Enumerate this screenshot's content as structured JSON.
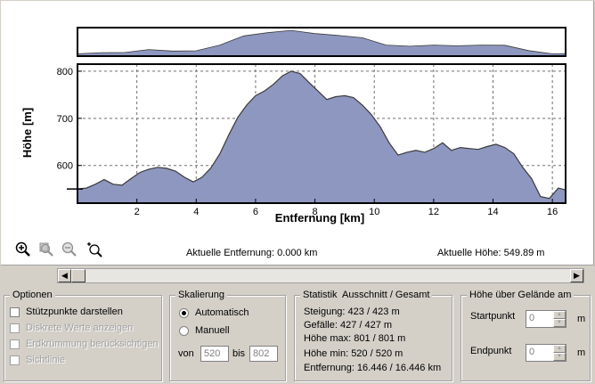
{
  "chart_data": {
    "type": "area",
    "ylabel": "Höhe [m]",
    "xlabel": "Entfernung [km]",
    "x_ticks": [
      "2",
      "4",
      "6",
      "8",
      "10",
      "12",
      "14",
      "16"
    ],
    "y_ticks": [
      "600",
      "700",
      "800"
    ],
    "xlim": [
      0,
      16.446
    ],
    "ylim": [
      520,
      815
    ],
    "grid": true,
    "profile_x": [
      0,
      0.3,
      0.6,
      0.9,
      1.2,
      1.5,
      1.8,
      2.1,
      2.4,
      2.7,
      3.0,
      3.3,
      3.6,
      3.9,
      4.2,
      4.5,
      4.8,
      5.1,
      5.4,
      5.7,
      6.0,
      6.3,
      6.6,
      6.9,
      7.2,
      7.5,
      7.8,
      8.1,
      8.4,
      8.7,
      9.0,
      9.3,
      9.6,
      9.9,
      10.2,
      10.5,
      10.8,
      11.1,
      11.4,
      11.7,
      12.0,
      12.3,
      12.6,
      12.9,
      13.2,
      13.5,
      13.8,
      14.1,
      14.4,
      14.7,
      15.0,
      15.3,
      15.6,
      15.9,
      16.2,
      16.446
    ],
    "profile_y": [
      550,
      552,
      560,
      570,
      560,
      558,
      572,
      585,
      592,
      596,
      594,
      588,
      575,
      565,
      575,
      595,
      625,
      665,
      702,
      728,
      748,
      758,
      772,
      790,
      800,
      795,
      776,
      758,
      740,
      746,
      748,
      744,
      728,
      708,
      682,
      648,
      622,
      628,
      632,
      628,
      636,
      648,
      632,
      638,
      636,
      634,
      640,
      645,
      638,
      625,
      596,
      572,
      534,
      530,
      552,
      548
    ],
    "overview_x": [
      0,
      0.8,
      1.6,
      2.4,
      3.2,
      4.0,
      4.8,
      5.6,
      6.4,
      7.2,
      8.0,
      8.8,
      9.6,
      10.4,
      11.2,
      12.0,
      12.8,
      13.6,
      14.4,
      15.2,
      16.0,
      16.446
    ],
    "overview_y": [
      545,
      558,
      560,
      592,
      575,
      578,
      640,
      740,
      775,
      800,
      765,
      745,
      720,
      640,
      628,
      640,
      632,
      640,
      638,
      580,
      545,
      548
    ]
  },
  "toolbar": {
    "zoom_in_icon": "zoom-in-icon",
    "zoom_box_icon": "zoom-box-icon",
    "zoom_out_icon": "zoom-out-icon",
    "zoom_fit_icon": "zoom-fit-icon"
  },
  "status": {
    "distance": "Aktuelle Entfernung: 0.000 km",
    "height": "Aktuelle Höhe: 549.89 m"
  },
  "optionen": {
    "title": "Optionen",
    "items": [
      {
        "label": "Stützpunkte darstellen",
        "enabled": true
      },
      {
        "label": "Diskrete Werte anzeigen",
        "enabled": false
      },
      {
        "label": "Erdkrümmung berücksichtigen",
        "enabled": false
      },
      {
        "label": "Sichtlinie",
        "enabled": false
      }
    ]
  },
  "skalierung": {
    "title": "Skalierung",
    "auto_label": "Automatisch",
    "manual_label": "Manuell",
    "von_label": "von",
    "von_value": "520",
    "bis_label": "bis",
    "bis_value": "802"
  },
  "statistik": {
    "title": "Statistik  Ausschnitt / Gesamt",
    "lines": [
      "Steigung: 423 / 423 m",
      "Gefälle: 427 / 427 m",
      "Höhe max: 801 / 801 m",
      "Höhe min: 520 / 520 m",
      "Entfernung: 16.446 / 16.446 km"
    ]
  },
  "gelaende": {
    "title": "Höhe über Gelände am",
    "start_label": "Startpunkt",
    "start_value": "0",
    "end_label": "Endpunkt",
    "end_value": "0",
    "unit": "m"
  },
  "colors": {
    "fill": "#8e97bf",
    "line": "#3a3a3a"
  }
}
